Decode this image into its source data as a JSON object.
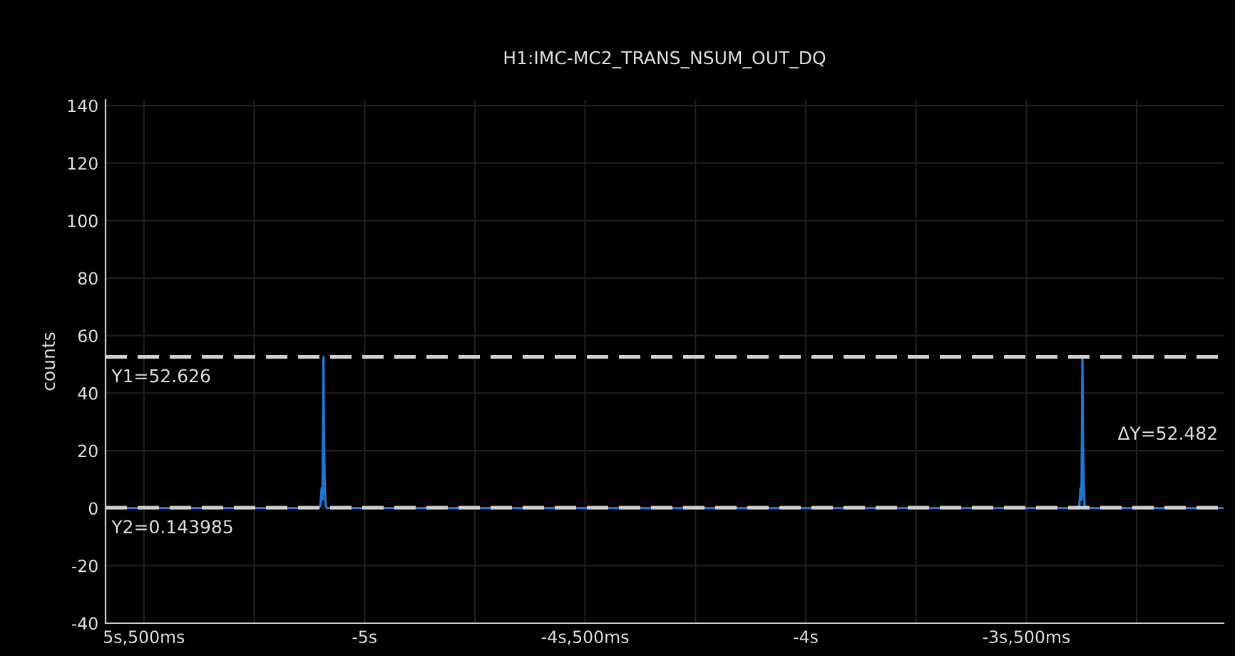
{
  "chart_data": {
    "type": "line",
    "title": "H1:IMC-MC2_TRANS_NSUM_OUT_DQ",
    "ylabel": "counts",
    "series": [
      {
        "color": "#1f77d4",
        "x": [
          -5.587,
          -5.3,
          -5.105,
          -5.1,
          -5.097,
          -5.095,
          -5.094,
          -5.093,
          -5.092,
          -5.09,
          -5.088,
          -5.085,
          -4.5,
          -4.0,
          -3.385,
          -3.38,
          -3.377,
          -3.375,
          -3.374,
          -3.373,
          -3.372,
          -3.37,
          -3.368,
          -3.365,
          -3.053
        ],
        "values": [
          0,
          0,
          0,
          1,
          7,
          3,
          29,
          52.5,
          25,
          7,
          1,
          0,
          0,
          0,
          0,
          1,
          7,
          3,
          25,
          52.5,
          25,
          7,
          1,
          0,
          0
        ]
      }
    ],
    "xlim": [
      -5.587,
      -3.053
    ],
    "ylim": [
      -40,
      142
    ],
    "xticks": [
      {
        "value": -5.5,
        "label": "5s,500ms"
      },
      {
        "value": -5.25,
        "label": null
      },
      {
        "value": -5.0,
        "label": "-5s"
      },
      {
        "value": -4.75,
        "label": null
      },
      {
        "value": -4.5,
        "label": "-4s,500ms"
      },
      {
        "value": -4.25,
        "label": null
      },
      {
        "value": -4.0,
        "label": "-4s"
      },
      {
        "value": -3.75,
        "label": null
      },
      {
        "value": -3.5,
        "label": "-3s,500ms"
      },
      {
        "value": -3.25,
        "label": null
      }
    ],
    "yticks": [
      -40,
      -20,
      0,
      20,
      40,
      60,
      80,
      100,
      120,
      140
    ],
    "grid": true,
    "ref_lines": [
      {
        "axis": "y",
        "value": 52.626,
        "label": "Y1=52.626",
        "color": "#d0d0d0",
        "line_style": "dashed"
      },
      {
        "axis": "y",
        "value": 0.143985,
        "label": "Y2=0.143985",
        "color": "#d0d0d0",
        "line_style": "dashed"
      }
    ],
    "annotations": [
      "ΔY=52.482"
    ]
  }
}
